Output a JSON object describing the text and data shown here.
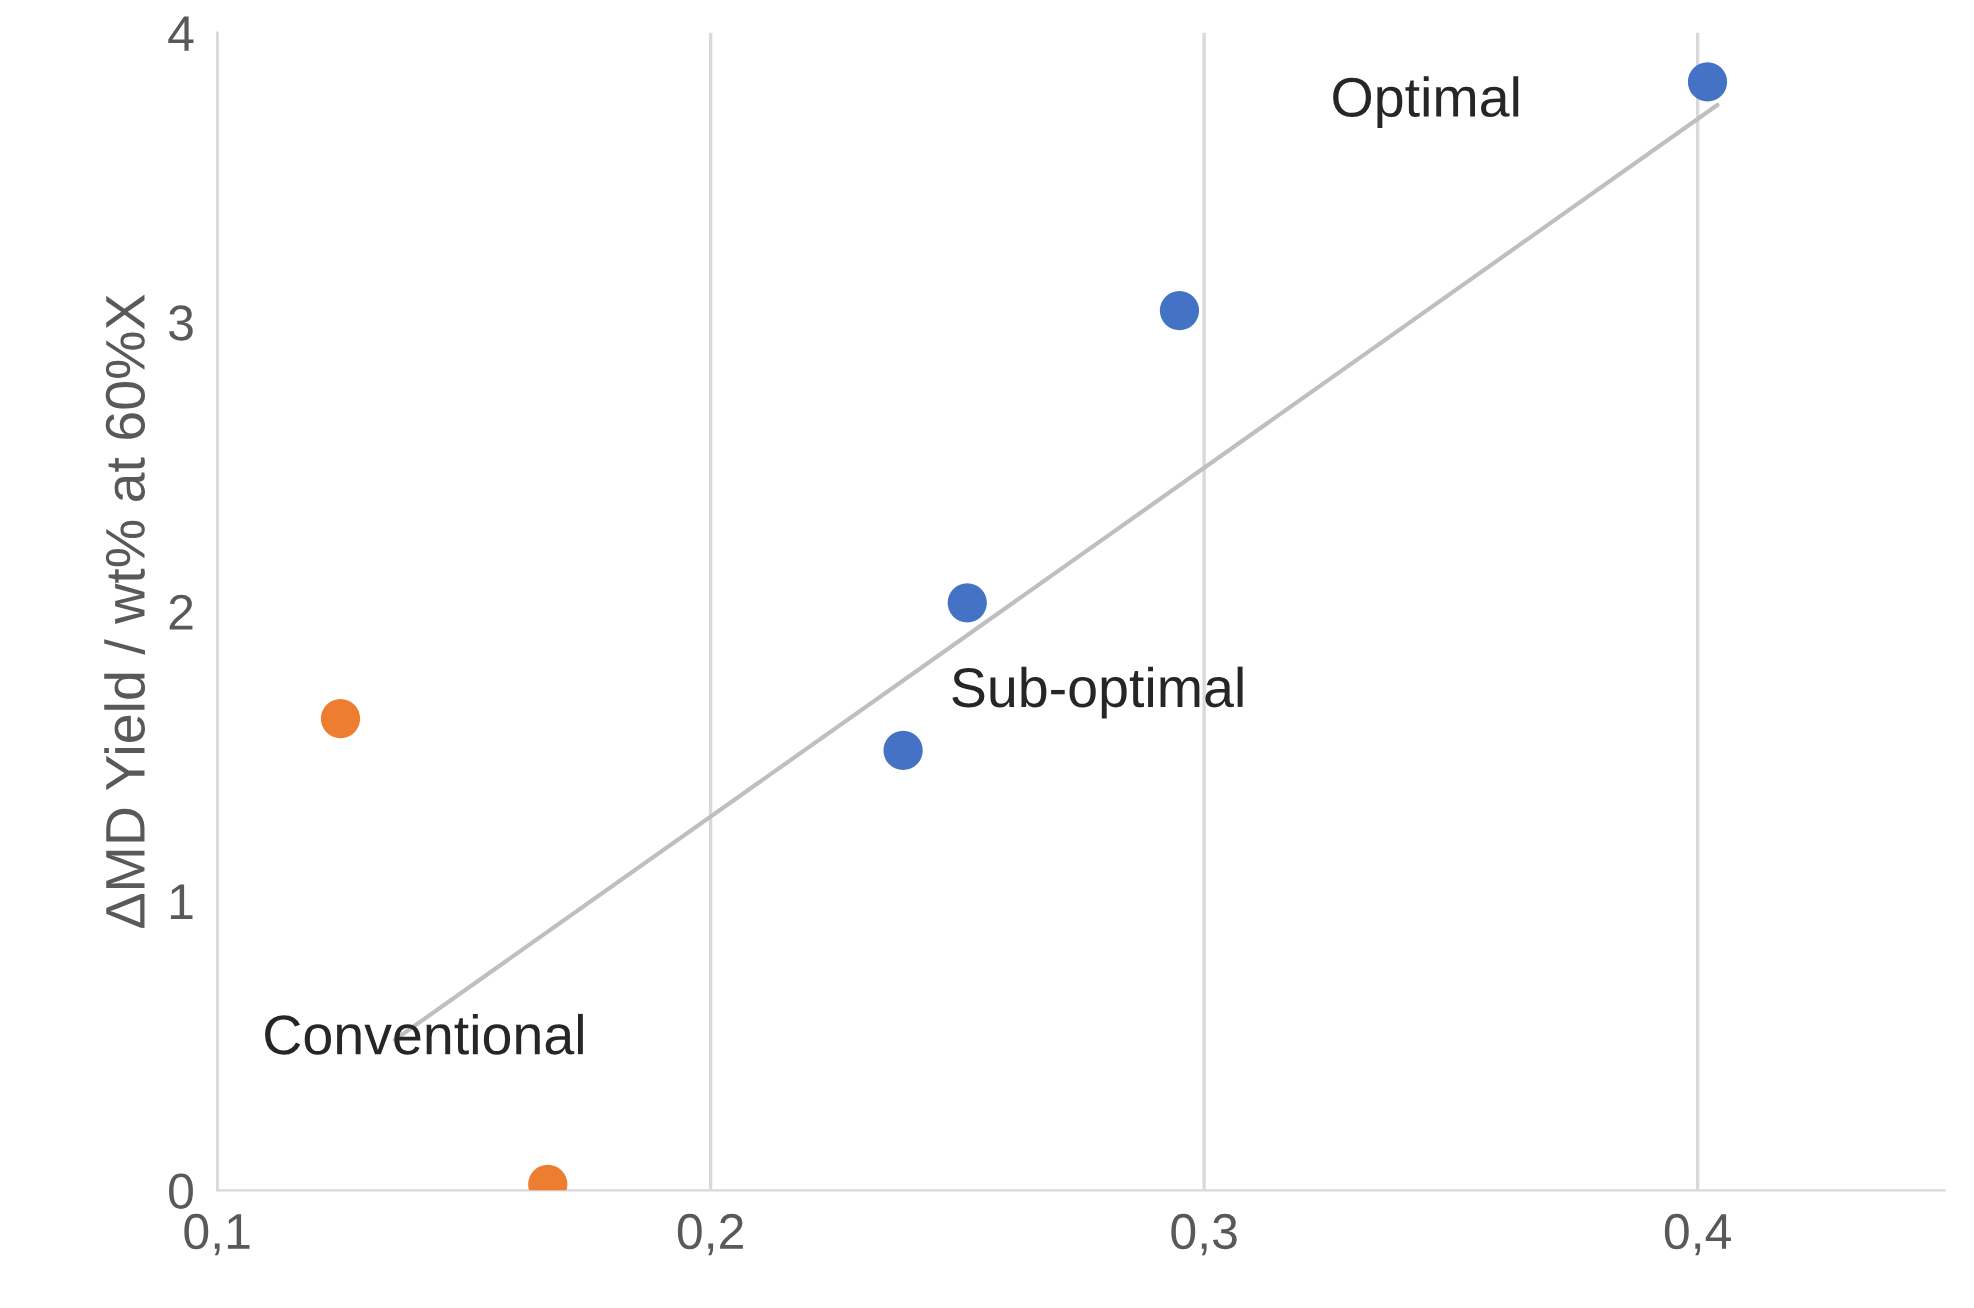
{
  "chart_data": {
    "type": "scatter",
    "ylabel": "ΔMD Yield / wt% at 60%X",
    "series": [
      {
        "color": "#4472c4",
        "marker": "circle",
        "x": [
          0.239,
          0.252,
          0.295,
          0.402
        ],
        "values": [
          1.52,
          2.03,
          3.04,
          3.83
        ]
      },
      {
        "color": "#ed7d31",
        "marker": "circle",
        "x": [
          0.125,
          0.167
        ],
        "values": [
          1.63,
          0.02
        ]
      },
      {
        "type": "line",
        "color": "#bfbfbf",
        "x": [
          0.136,
          0.404
        ],
        "values": [
          0.52,
          3.75
        ]
      }
    ],
    "annotations": [
      "Optimal",
      "Sub-optimal",
      "Conventional"
    ],
    "xlim": [
      0.1,
      0.45
    ],
    "ylim": [
      0,
      4
    ],
    "xticks": [
      {
        "value": 0.1,
        "label": "0,1"
      },
      {
        "value": 0.2,
        "label": "0,2"
      },
      {
        "value": 0.3,
        "label": "0,3"
      },
      {
        "value": 0.4,
        "label": "0,4"
      }
    ],
    "yticks": [
      0,
      1,
      2,
      3,
      4
    ],
    "grid": "x"
  }
}
